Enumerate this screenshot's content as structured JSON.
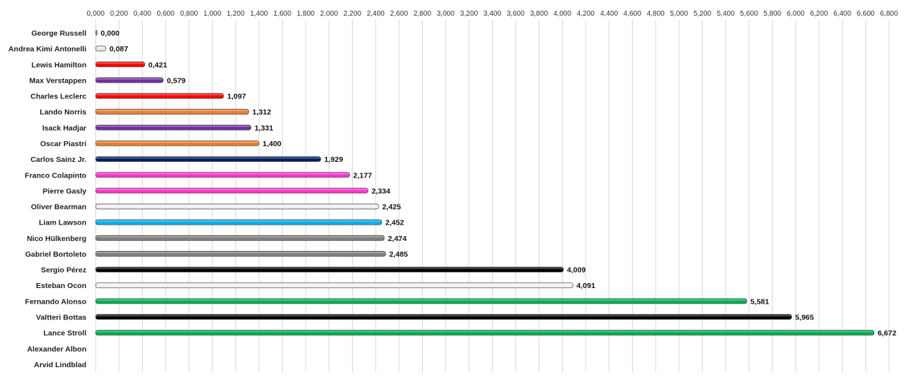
{
  "chart_data": {
    "type": "bar",
    "orientation": "horizontal",
    "title": "",
    "xlabel": "",
    "ylabel": "",
    "xlim": [
      0,
      6.8
    ],
    "x_tick_step": 0.2,
    "x_axis_position": "top",
    "grid": true,
    "legend": "none",
    "categories": [
      "George Russell",
      "Andrea Kimi Antonelli",
      "Lewis Hamilton",
      "Max Verstappen",
      "Charles Leclerc",
      "Lando Norris",
      "Isack Hadjar",
      "Oscar Piastri",
      "Carlos Sainz Jr.",
      "Franco Colapinto",
      "Pierre Gasly",
      "Oliver Bearman",
      "Liam Lawson",
      "Nico Hülkenberg",
      "Gabriel Bortoleto",
      "Sergio Pérez",
      "Esteban Ocon",
      "Fernando Alonso",
      "Valtteri Bottas",
      "Lance Stroll",
      "Alexander Albon",
      "Arvid Lindblad"
    ],
    "values": [
      0.0,
      0.087,
      0.421,
      0.579,
      1.097,
      1.312,
      1.331,
      1.4,
      1.929,
      2.177,
      2.334,
      2.425,
      2.452,
      2.474,
      2.485,
      4.009,
      4.091,
      5.581,
      5.965,
      6.672,
      null,
      null
    ],
    "value_labels": [
      "0,000",
      "0,087",
      "0,421",
      "0,579",
      "1,097",
      "1,312",
      "1,331",
      "1,400",
      "1,929",
      "2,177",
      "2,334",
      "2,425",
      "2,452",
      "2,474",
      "2,485",
      "4,009",
      "4,091",
      "5,581",
      "5,965",
      "6,672",
      "",
      ""
    ],
    "bar_colors": [
      "#9a9a9a",
      "#e6e6e6",
      "#ff0000",
      "#7030a0",
      "#ff0000",
      "#ed7d31",
      "#7030a0",
      "#ed7d31",
      "#002060",
      "#ff33cc",
      "#ff33cc",
      "#f2f2f2",
      "#00b0f0",
      "#808080",
      "#808080",
      "#000000",
      "#f2f2f2",
      "#00b050",
      "#000000",
      "#00b050",
      "#ffffff",
      "#ffffff"
    ]
  }
}
